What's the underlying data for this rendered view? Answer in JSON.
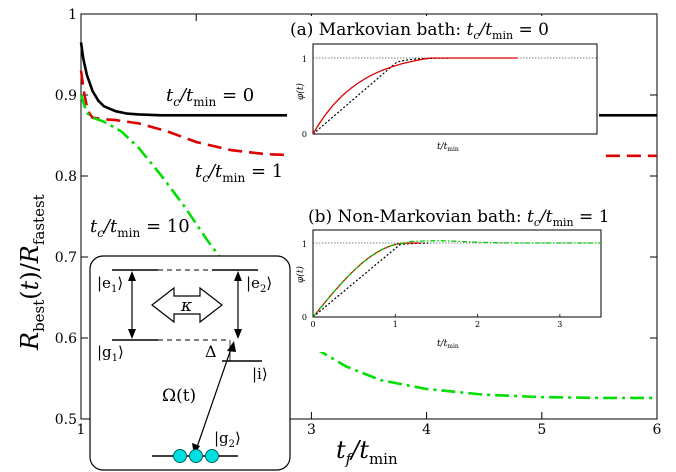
{
  "chart_data": {
    "type": "line",
    "xlabel": "t_f/t_min",
    "ylabel": "R_best(t)/R_fastest",
    "xlim": [
      1,
      6
    ],
    "ylim": [
      0.5,
      1.0
    ],
    "x_ticks": [
      "1",
      "2",
      "3",
      "4",
      "5",
      "6"
    ],
    "y_ticks": [
      "0.5",
      "0.6",
      "0.7",
      "0.8",
      "0.9",
      "1"
    ],
    "grid": false,
    "series": [
      {
        "name": "t_c/t_min = 0",
        "label_display": {
          "base": "t",
          "sub": "c",
          "mid": "/t",
          "sub2": "min",
          "tail": " = 0"
        },
        "color": "#000000",
        "style": "solid",
        "x": [
          1.0,
          1.02,
          1.05,
          1.1,
          1.15,
          1.2,
          1.3,
          1.4,
          1.5,
          1.7,
          2.0,
          3.0,
          4.0,
          5.0,
          6.0
        ],
        "y": [
          0.965,
          0.945,
          0.925,
          0.905,
          0.893,
          0.886,
          0.88,
          0.877,
          0.876,
          0.875,
          0.875,
          0.875,
          0.875,
          0.875,
          0.875
        ]
      },
      {
        "name": "t_c/t_min = 1",
        "label_display": {
          "base": "t",
          "sub": "c",
          "mid": "/t",
          "sub2": "min",
          "tail": " = 1"
        },
        "color": "#dd0000",
        "style": "dashed",
        "x": [
          1.0,
          1.03,
          1.06,
          1.1,
          1.2,
          1.3,
          1.5,
          1.75,
          2.0,
          2.3,
          2.6,
          3.0,
          3.5,
          4.0,
          5.0,
          6.0
        ],
        "y": [
          0.93,
          0.9,
          0.88,
          0.872,
          0.87,
          0.869,
          0.865,
          0.855,
          0.842,
          0.832,
          0.827,
          0.825,
          0.825,
          0.825,
          0.825,
          0.825
        ]
      },
      {
        "name": "t_c/t_min = 10",
        "label_display": {
          "base": "t",
          "sub": "c",
          "mid": "/t",
          "sub2": "min",
          "tail": " = 10"
        },
        "color": "#00dd00",
        "style": "dashdot",
        "x": [
          1.0,
          1.05,
          1.1,
          1.2,
          1.35,
          1.5,
          1.7,
          1.9,
          2.1,
          2.3,
          2.5,
          2.7,
          3.0,
          3.3,
          3.6,
          4.0,
          4.5,
          5.0,
          5.5,
          6.0
        ],
        "y": [
          0.9,
          0.878,
          0.872,
          0.867,
          0.855,
          0.835,
          0.8,
          0.762,
          0.72,
          0.682,
          0.648,
          0.62,
          0.59,
          0.565,
          0.548,
          0.537,
          0.53,
          0.527,
          0.526,
          0.526
        ]
      }
    ],
    "insets": [
      {
        "title": "(a) Markovian bath: t_c/t_min = 0",
        "title_display": {
          "pre": "(a) Markovian bath: "
        },
        "xlabel": "t/t_min",
        "ylabel": "φ(t)",
        "x_ticks": [],
        "y_ticks": [
          "0",
          "1"
        ],
        "xlim": [
          0,
          2.5
        ],
        "ylim": [
          0,
          1.25
        ]
      },
      {
        "title": "(b) Non-Markovian bath: t_c/t_min = 1",
        "title_display": {
          "pre": "(b) Non-Markovian bath: "
        },
        "xlabel": "t/t_min",
        "ylabel": "φ(t)",
        "x_ticks": [
          "0",
          "1",
          "2",
          "3"
        ],
        "y_ticks": [
          "0",
          "1"
        ],
        "xlim": [
          0,
          3.5
        ],
        "ylim": [
          0,
          1.2
        ]
      }
    ],
    "level_diagram": {
      "labels": {
        "e1": {
          "base": "|e",
          "sub": "1",
          "tail": "⟩"
        },
        "e2": {
          "base": "|e",
          "sub": "2",
          "tail": "⟩"
        },
        "g1": {
          "base": "|g",
          "sub": "1",
          "tail": "⟩"
        },
        "g2": {
          "base": "|g",
          "sub": "2",
          "tail": "⟩"
        },
        "i": {
          "base": "|i",
          "sub": "",
          "tail": "⟩"
        }
      },
      "coupling": "κ",
      "detuning": "Δ",
      "drive": "Ω(t)"
    }
  }
}
